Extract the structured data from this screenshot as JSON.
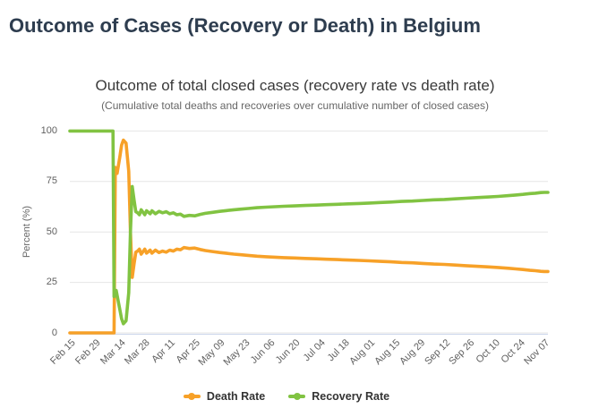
{
  "page": {
    "title": "Outcome of Cases (Recovery or Death) in Belgium"
  },
  "chart": {
    "title": "Outcome of total closed cases (recovery rate vs death rate)",
    "subtitle": "(Cumulative total deaths and recoveries over cumulative number of closed cases)",
    "y_axis_title": "Percent (%)",
    "colors": {
      "death_rate": "#f7a128",
      "recovery_rate": "#81c342",
      "gridline": "#e6e6e6",
      "axis_line": "#ccd6eb",
      "title_text": "#3a3a3a",
      "page_title_text": "#2e3d4f",
      "tick_text": "#606060"
    },
    "legend": [
      {
        "label": "Death Rate",
        "color": "#f7a128"
      },
      {
        "label": "Recovery Rate",
        "color": "#81c342"
      }
    ]
  },
  "chart_data": {
    "type": "line",
    "title": "Outcome of total closed cases (recovery rate vs death rate)",
    "subtitle": "(Cumulative total deaths and recoveries over cumulative number of closed cases)",
    "xlabel": "",
    "ylabel": "Percent (%)",
    "ylim": [
      0,
      100
    ],
    "yticks": [
      0,
      25,
      50,
      75,
      100
    ],
    "grid": "horizontal",
    "legend_position": "bottom",
    "x_epoch_label": "Feb 15",
    "x_tick_step_days": 14,
    "xticklabels": [
      "Feb 15",
      "Feb 29",
      "Mar 14",
      "Mar 28",
      "Apr 11",
      "Apr 25",
      "May 09",
      "May 23",
      "Jun 06",
      "Jun 20",
      "Jul 04",
      "Jul 18",
      "Aug 01",
      "Aug 15",
      "Aug 29",
      "Sep 12",
      "Sep 26",
      "Oct 10",
      "Oct 24",
      "Nov 07"
    ],
    "x_range_days": [
      0,
      268
    ],
    "series": [
      {
        "name": "Death Rate",
        "color": "#f7a128",
        "points": [
          [
            0,
            0
          ],
          [
            24.8,
            0
          ],
          [
            25.5,
            82
          ],
          [
            26.5,
            79
          ],
          [
            28,
            87
          ],
          [
            29,
            93
          ],
          [
            30,
            95.5
          ],
          [
            31.5,
            94
          ],
          [
            33,
            80
          ],
          [
            34,
            50
          ],
          [
            35,
            27.5
          ],
          [
            36,
            34
          ],
          [
            37,
            40
          ],
          [
            38,
            40.5
          ],
          [
            39,
            41.5
          ],
          [
            40,
            39
          ],
          [
            42,
            41.5
          ],
          [
            43,
            39.5
          ],
          [
            45,
            41
          ],
          [
            46,
            39.5
          ],
          [
            48,
            41
          ],
          [
            50,
            39.8
          ],
          [
            52,
            40.5
          ],
          [
            54,
            40
          ],
          [
            56,
            41
          ],
          [
            58,
            40.5
          ],
          [
            60,
            41.5
          ],
          [
            62,
            41.2
          ],
          [
            64,
            42.3
          ],
          [
            67,
            41.8
          ],
          [
            70,
            42
          ],
          [
            73,
            41.3
          ],
          [
            76,
            40.8
          ],
          [
            80,
            40.3
          ],
          [
            84,
            39.8
          ],
          [
            88,
            39.4
          ],
          [
            92,
            39
          ],
          [
            96,
            38.7
          ],
          [
            100,
            38.4
          ],
          [
            105,
            38
          ],
          [
            110,
            37.7
          ],
          [
            115,
            37.5
          ],
          [
            120,
            37.3
          ],
          [
            126,
            37.1
          ],
          [
            132,
            36.9
          ],
          [
            138,
            36.7
          ],
          [
            144,
            36.5
          ],
          [
            150,
            36.3
          ],
          [
            156,
            36.1
          ],
          [
            162,
            35.9
          ],
          [
            168,
            35.7
          ],
          [
            174,
            35.4
          ],
          [
            180,
            35.2
          ],
          [
            186,
            34.9
          ],
          [
            192,
            34.7
          ],
          [
            198,
            34.4
          ],
          [
            204,
            34.1
          ],
          [
            210,
            33.9
          ],
          [
            216,
            33.6
          ],
          [
            222,
            33.3
          ],
          [
            228,
            33
          ],
          [
            234,
            32.7
          ],
          [
            240,
            32.4
          ],
          [
            246,
            32
          ],
          [
            250,
            31.7
          ],
          [
            254,
            31.4
          ],
          [
            258,
            31
          ],
          [
            261,
            30.8
          ],
          [
            264,
            30.5
          ],
          [
            266,
            30.4
          ],
          [
            268,
            30.4
          ]
        ]
      },
      {
        "name": "Recovery Rate",
        "color": "#81c342",
        "points": [
          [
            0,
            100
          ],
          [
            24.2,
            100
          ],
          [
            24.8,
            18
          ],
          [
            26,
            21
          ],
          [
            27.5,
            14
          ],
          [
            29,
            7
          ],
          [
            30,
            4.5
          ],
          [
            31.5,
            6
          ],
          [
            33,
            20
          ],
          [
            34,
            50
          ],
          [
            35,
            72.5
          ],
          [
            36,
            66
          ],
          [
            37,
            60
          ],
          [
            38,
            59.5
          ],
          [
            39,
            58.5
          ],
          [
            40,
            61
          ],
          [
            42,
            58.5
          ],
          [
            43,
            60.5
          ],
          [
            45,
            59
          ],
          [
            46,
            60.5
          ],
          [
            48,
            59
          ],
          [
            50,
            60.2
          ],
          [
            52,
            59.5
          ],
          [
            54,
            60
          ],
          [
            56,
            59
          ],
          [
            58,
            59.5
          ],
          [
            60,
            58.5
          ],
          [
            62,
            58.8
          ],
          [
            64,
            57.7
          ],
          [
            67,
            58.2
          ],
          [
            70,
            58
          ],
          [
            73,
            58.7
          ],
          [
            76,
            59.2
          ],
          [
            80,
            59.7
          ],
          [
            84,
            60.2
          ],
          [
            88,
            60.6
          ],
          [
            92,
            61
          ],
          [
            96,
            61.3
          ],
          [
            100,
            61.6
          ],
          [
            105,
            62
          ],
          [
            110,
            62.3
          ],
          [
            115,
            62.5
          ],
          [
            120,
            62.7
          ],
          [
            126,
            62.9
          ],
          [
            132,
            63.1
          ],
          [
            138,
            63.3
          ],
          [
            144,
            63.5
          ],
          [
            150,
            63.7
          ],
          [
            156,
            63.9
          ],
          [
            162,
            64.1
          ],
          [
            168,
            64.3
          ],
          [
            174,
            64.6
          ],
          [
            180,
            64.8
          ],
          [
            186,
            65.1
          ],
          [
            192,
            65.3
          ],
          [
            198,
            65.6
          ],
          [
            204,
            65.9
          ],
          [
            210,
            66.1
          ],
          [
            216,
            66.4
          ],
          [
            222,
            66.7
          ],
          [
            228,
            67
          ],
          [
            234,
            67.3
          ],
          [
            240,
            67.6
          ],
          [
            246,
            68
          ],
          [
            250,
            68.3
          ],
          [
            254,
            68.6
          ],
          [
            258,
            69
          ],
          [
            261,
            69.2
          ],
          [
            264,
            69.5
          ],
          [
            266,
            69.6
          ],
          [
            268,
            69.6
          ]
        ]
      }
    ]
  }
}
